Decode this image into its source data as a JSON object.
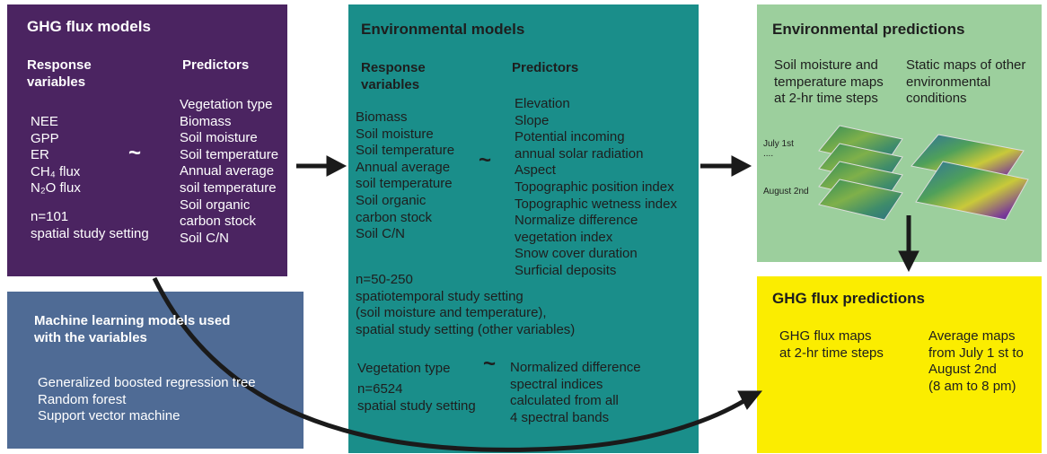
{
  "ghg_flux_models": {
    "title": "GHG flux models",
    "response_header": [
      "Response",
      "variables"
    ],
    "predictors_header": "Predictors",
    "responses": [
      "NEE",
      "GPP",
      "ER",
      "CH₄ flux",
      "N₂O flux"
    ],
    "tilde": "~",
    "predictors": [
      "Vegetation type",
      "Biomass",
      "Soil moisture",
      "Soil temperature",
      "Annual average",
      "soil temperature",
      "Soil organic",
      "carbon stock",
      "Soil C/N"
    ],
    "notes": [
      "n=101",
      "spatial study setting"
    ]
  },
  "machine_learning_models": {
    "title": [
      "Machine learning models used",
      "with the variables"
    ],
    "items": [
      "Generalized boosted regression tree",
      "Random forest",
      "Support vector machine"
    ]
  },
  "environmental_models": {
    "title": "Environmental models",
    "response_header": [
      "Response",
      "variables"
    ],
    "predictors_header": "Predictors",
    "responses": [
      "Biomass",
      "Soil moisture",
      "Soil temperature",
      "Annual average",
      "soil temperature",
      "Soil organic",
      "carbon stock",
      "Soil C/N"
    ],
    "tilde": "~",
    "predictors": [
      "Elevation",
      "Slope",
      "Potential incoming",
      "annual solar radiation",
      "Aspect",
      "Topographic position index",
      "Topographic wetness index",
      "Normalize difference",
      "vegetation index",
      "Snow cover duration",
      "Surficial deposits"
    ],
    "notes": [
      "n=50-250",
      "spatiotemporal study setting",
      "(soil moisture and temperature),",
      "spatial study setting (other variables)"
    ],
    "vegetation": {
      "response": "Vegetation type",
      "tilde": "~",
      "notes": [
        "n=6524",
        "spatial study setting"
      ],
      "predictors": [
        "Normalized difference",
        "spectral indices",
        "calculated from all",
        "4 spectral bands"
      ]
    }
  },
  "environmental_predictions": {
    "title": "Environmental predictions",
    "dynamic_maps": [
      "Soil moisture and",
      "temperature maps",
      "at 2-hr time steps"
    ],
    "static_maps": [
      "Static maps of other",
      "environmental",
      "conditions"
    ],
    "map_labels": [
      "July 1st",
      "....",
      "August 2nd"
    ]
  },
  "ghg_flux_predictions": {
    "title": "GHG flux predictions",
    "flux_maps": [
      "GHG flux maps",
      "at 2-hr time steps"
    ],
    "average_maps": [
      "Average maps",
      "from July 1 st to",
      "August 2nd",
      "(8 am to 8 pm)"
    ]
  }
}
